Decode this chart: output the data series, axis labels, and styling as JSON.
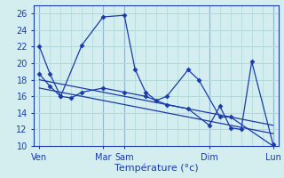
{
  "background_color": "#d4eef0",
  "grid_color": "#b0d8d8",
  "line_color": "#1a3aaa",
  "marker_color": "#1a3aaa",
  "xlabel": "Température (°c)",
  "ylim": [
    10,
    27
  ],
  "yticks": [
    10,
    12,
    14,
    16,
    18,
    20,
    22,
    24,
    26
  ],
  "x_vlines": [
    0,
    6,
    8,
    16,
    22
  ],
  "x_ticks_pos": [
    0,
    6,
    8,
    16,
    22
  ],
  "x_ticks_labels": [
    "Ven",
    "Mar",
    "Sam",
    "Dim",
    "Lun"
  ],
  "xlim": [
    -0.5,
    22.5
  ],
  "series": [
    {
      "x": [
        0,
        1,
        2,
        4,
        6,
        8,
        9,
        10,
        11,
        12,
        14,
        15,
        17,
        18,
        22
      ],
      "y": [
        22,
        18.7,
        16.0,
        22.2,
        25.6,
        25.8,
        19.3,
        16.5,
        15.5,
        16.0,
        19.2,
        18.0,
        13.5,
        13.5,
        10.0
      ],
      "marker": true
    },
    {
      "x": [
        0,
        1,
        2,
        3,
        4,
        6,
        8,
        10,
        12,
        14,
        16,
        17,
        18,
        19,
        20,
        22
      ],
      "y": [
        18.7,
        17.2,
        16.0,
        15.8,
        16.5,
        17.0,
        16.5,
        16.0,
        15.0,
        14.5,
        12.5,
        14.8,
        12.2,
        12.0,
        20.2,
        10.2
      ],
      "marker": true
    },
    {
      "x": [
        0,
        22
      ],
      "y": [
        18.0,
        12.5
      ],
      "marker": false
    },
    {
      "x": [
        0,
        22
      ],
      "y": [
        17.0,
        11.5
      ],
      "marker": false
    }
  ]
}
